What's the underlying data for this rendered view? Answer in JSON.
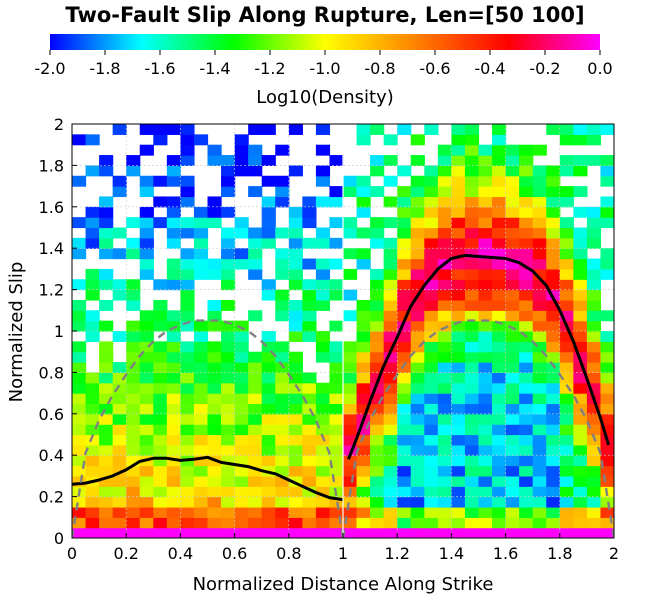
{
  "chart_data": {
    "type": "heatmap",
    "title": "Two-Fault Slip Along Rupture, Len=[50 100]",
    "xlabel": "Normalized Distance Along Strike",
    "ylabel": "Normalized Slip",
    "xlim": [
      0,
      2
    ],
    "ylim": [
      0,
      2
    ],
    "x_ticks": [
      "0",
      "0.2",
      "0.4",
      "0.6",
      "0.8",
      "1",
      "1.2",
      "1.4",
      "1.6",
      "1.8",
      "2"
    ],
    "y_ticks": [
      "0",
      "0.2",
      "0.4",
      "0.6",
      "0.8",
      "1",
      "1.2",
      "1.4",
      "1.6",
      "1.8",
      "2"
    ],
    "grid": true,
    "colorbar": {
      "label": "Log10(Density)",
      "range": [
        -2.0,
        0.0
      ],
      "ticks": [
        "-2.0",
        "-1.8",
        "-1.6",
        "-1.4",
        "-1.2",
        "-1.0",
        "-0.8",
        "-0.6",
        "-0.4",
        "-0.2",
        "0.0"
      ],
      "colors": [
        "#0000ff",
        "#00ffff",
        "#00ff00",
        "#ffff00",
        "#ff8000",
        "#ff0000",
        "#ff00ff"
      ],
      "position": "top"
    },
    "series": [
      {
        "style": "solid",
        "color": "#000000",
        "x": [
          0.0,
          0.05,
          0.1,
          0.15,
          0.2,
          0.25,
          0.3,
          0.35,
          0.4,
          0.45,
          0.5,
          0.55,
          0.6,
          0.65,
          0.7,
          0.75,
          0.8,
          0.85,
          0.9,
          0.95,
          1.0
        ],
        "y": [
          0.26,
          0.265,
          0.28,
          0.3,
          0.33,
          0.37,
          0.385,
          0.385,
          0.375,
          0.38,
          0.39,
          0.365,
          0.355,
          0.345,
          0.325,
          0.31,
          0.28,
          0.25,
          0.22,
          0.195,
          0.185
        ]
      },
      {
        "style": "solid",
        "color": "#000000",
        "x": [
          1.02,
          1.05,
          1.1,
          1.15,
          1.2,
          1.25,
          1.3,
          1.35,
          1.4,
          1.45,
          1.5,
          1.55,
          1.6,
          1.65,
          1.7,
          1.75,
          1.8,
          1.85,
          1.9,
          1.95,
          1.98
        ],
        "y": [
          0.38,
          0.48,
          0.66,
          0.83,
          0.97,
          1.12,
          1.22,
          1.3,
          1.35,
          1.365,
          1.36,
          1.355,
          1.35,
          1.33,
          1.29,
          1.22,
          1.1,
          0.95,
          0.77,
          0.58,
          0.45
        ]
      },
      {
        "style": "dashed",
        "color": "#808080",
        "x": [
          0.0,
          0.05,
          0.1,
          0.15,
          0.2,
          0.25,
          0.3,
          0.35,
          0.4,
          0.45,
          0.5,
          0.55,
          0.6,
          0.65,
          0.7,
          0.75,
          0.8,
          0.85,
          0.9,
          0.95,
          1.0
        ],
        "y": [
          0.0,
          0.41,
          0.57,
          0.69,
          0.79,
          0.88,
          0.95,
          1.0,
          1.03,
          1.05,
          1.05,
          1.05,
          1.03,
          1.0,
          0.95,
          0.88,
          0.79,
          0.69,
          0.57,
          0.41,
          0.0
        ]
      },
      {
        "style": "dashed",
        "color": "#808080",
        "x": [
          1.0,
          1.05,
          1.1,
          1.15,
          1.2,
          1.25,
          1.3,
          1.35,
          1.4,
          1.45,
          1.5,
          1.55,
          1.6,
          1.65,
          1.7,
          1.75,
          1.8,
          1.85,
          1.9,
          1.95,
          2.0
        ],
        "y": [
          0.0,
          0.41,
          0.57,
          0.69,
          0.79,
          0.88,
          0.95,
          1.0,
          1.03,
          1.05,
          1.05,
          1.05,
          1.03,
          1.0,
          0.95,
          0.88,
          0.79,
          0.69,
          0.57,
          0.41,
          0.0
        ]
      }
    ]
  }
}
